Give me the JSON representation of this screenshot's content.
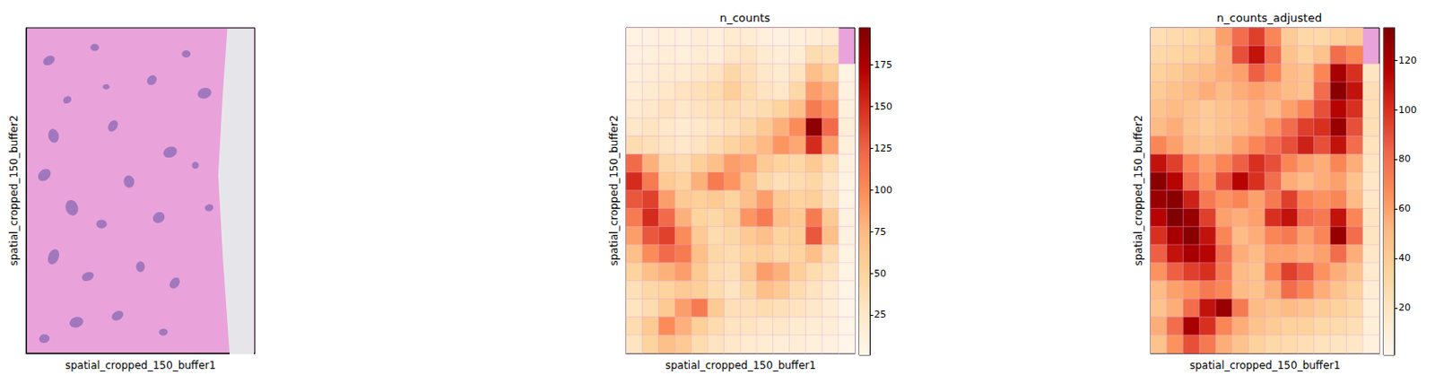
{
  "chart_data": [
    {
      "type": "image",
      "xlabel": "spatial_cropped_150_buffer1",
      "ylabel": "spatial_cropped_150_buffer2",
      "tick_labels": false
    },
    {
      "type": "heatmap",
      "title": "n_counts",
      "xlabel": "spatial_cropped_150_buffer1",
      "ylabel": "spatial_cropped_150_buffer2",
      "tick_labels": false,
      "cells": [
        [
          8,
          10,
          12,
          10,
          15,
          12,
          20,
          18,
          12,
          10,
          12,
          15,
          20,
          null
        ],
        [
          10,
          12,
          15,
          12,
          18,
          15,
          25,
          30,
          20,
          15,
          18,
          40,
          35,
          null
        ],
        [
          12,
          15,
          20,
          18,
          25,
          30,
          45,
          35,
          25,
          20,
          30,
          70,
          55,
          8
        ],
        [
          15,
          20,
          25,
          30,
          35,
          40,
          55,
          40,
          30,
          25,
          45,
          90,
          80,
          10
        ],
        [
          20,
          25,
          30,
          25,
          30,
          35,
          40,
          35,
          40,
          50,
          70,
          110,
          95,
          12
        ],
        [
          25,
          30,
          25,
          20,
          25,
          30,
          35,
          45,
          60,
          80,
          100,
          190,
          120,
          15
        ],
        [
          40,
          35,
          30,
          25,
          30,
          40,
          50,
          60,
          75,
          95,
          85,
          150,
          90,
          12
        ],
        [
          120,
          80,
          45,
          40,
          55,
          70,
          90,
          85,
          60,
          50,
          45,
          60,
          40,
          10
        ],
        [
          150,
          110,
          60,
          50,
          80,
          110,
          95,
          70,
          45,
          35,
          40,
          45,
          30,
          8
        ],
        [
          130,
          140,
          90,
          60,
          55,
          60,
          50,
          70,
          90,
          60,
          50,
          55,
          35,
          8
        ],
        [
          110,
          150,
          120,
          80,
          50,
          45,
          55,
          95,
          110,
          70,
          60,
          110,
          60,
          10
        ],
        [
          90,
          130,
          140,
          100,
          60,
          40,
          45,
          60,
          70,
          50,
          55,
          130,
          70,
          10
        ],
        [
          70,
          100,
          120,
          110,
          70,
          45,
          40,
          50,
          55,
          45,
          50,
          70,
          40,
          8
        ],
        [
          50,
          70,
          80,
          90,
          60,
          40,
          35,
          60,
          90,
          80,
          55,
          40,
          30,
          8
        ],
        [
          35,
          45,
          50,
          60,
          55,
          40,
          30,
          45,
          70,
          60,
          40,
          30,
          20,
          6
        ],
        [
          30,
          40,
          60,
          90,
          110,
          60,
          35,
          35,
          40,
          35,
          30,
          25,
          18,
          5
        ],
        [
          40,
          60,
          100,
          80,
          55,
          40,
          30,
          30,
          25,
          25,
          20,
          18,
          15,
          5
        ],
        [
          30,
          50,
          70,
          60,
          40,
          30,
          25,
          20,
          18,
          15,
          15,
          12,
          10,
          4
        ]
      ],
      "colorbar": {
        "range": [
          1,
          197
        ],
        "ticks": [
          25,
          50,
          75,
          100,
          125,
          150,
          175
        ]
      }
    },
    {
      "type": "heatmap",
      "title": "n_counts_adjusted",
      "xlabel": "spatial_cropped_150_buffer1",
      "ylabel": "spatial_cropped_150_buffer2",
      "tick_labels": false,
      "cells": [
        [
          25,
          28,
          30,
          35,
          60,
          80,
          95,
          70,
          40,
          30,
          30,
          35,
          40,
          null
        ],
        [
          30,
          32,
          35,
          40,
          55,
          90,
          110,
          80,
          45,
          35,
          45,
          80,
          70,
          null
        ],
        [
          35,
          40,
          45,
          50,
          55,
          60,
          85,
          70,
          50,
          45,
          70,
          120,
          100,
          20
        ],
        [
          40,
          45,
          50,
          55,
          50,
          55,
          60,
          55,
          50,
          45,
          80,
          130,
          110,
          25
        ],
        [
          45,
          50,
          45,
          40,
          45,
          50,
          55,
          50,
          60,
          70,
          90,
          115,
          100,
          25
        ],
        [
          50,
          55,
          45,
          40,
          45,
          50,
          55,
          65,
          80,
          95,
          100,
          125,
          90,
          25
        ],
        [
          70,
          60,
          50,
          45,
          50,
          60,
          70,
          80,
          90,
          105,
          90,
          110,
          80,
          22
        ],
        [
          110,
          95,
          70,
          60,
          70,
          85,
          100,
          90,
          70,
          60,
          55,
          70,
          55,
          20
        ],
        [
          130,
          115,
          80,
          65,
          90,
          115,
          100,
          80,
          55,
          50,
          55,
          60,
          45,
          18
        ],
        [
          125,
          130,
          105,
          75,
          65,
          70,
          60,
          75,
          95,
          70,
          65,
          70,
          50,
          18
        ],
        [
          115,
          133,
          125,
          95,
          60,
          55,
          60,
          100,
          110,
          80,
          75,
          110,
          70,
          20
        ],
        [
          100,
          120,
          130,
          110,
          70,
          50,
          55,
          70,
          75,
          60,
          70,
          125,
          80,
          20
        ],
        [
          85,
          110,
          120,
          115,
          80,
          55,
          50,
          60,
          60,
          55,
          60,
          80,
          55,
          18
        ],
        [
          65,
          85,
          95,
          100,
          75,
          50,
          45,
          70,
          95,
          85,
          65,
          55,
          45,
          15
        ],
        [
          50,
          60,
          65,
          75,
          70,
          50,
          45,
          55,
          80,
          70,
          55,
          45,
          35,
          12
        ],
        [
          45,
          55,
          80,
          110,
          125,
          75,
          50,
          45,
          50,
          45,
          40,
          35,
          30,
          10
        ],
        [
          55,
          80,
          120,
          100,
          70,
          55,
          45,
          40,
          35,
          35,
          30,
          28,
          25,
          10
        ],
        [
          45,
          65,
          90,
          75,
          55,
          45,
          35,
          30,
          28,
          25,
          22,
          20,
          18,
          8
        ]
      ],
      "colorbar": {
        "range": [
          1,
          133
        ],
        "ticks": [
          20,
          40,
          60,
          80,
          100,
          120
        ]
      }
    }
  ]
}
